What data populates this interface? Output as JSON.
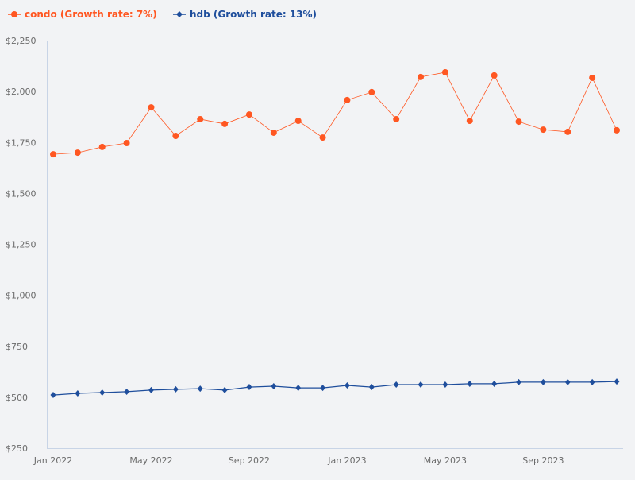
{
  "chart_data": {
    "type": "line",
    "title": "",
    "xlabel": "",
    "ylabel": "",
    "ylim": [
      250,
      2250
    ],
    "grid": false,
    "legend_position": "top-left",
    "y_ticks": [
      "$250",
      "$500",
      "$750",
      "$1,000",
      "$1,250",
      "$1,500",
      "$1,750",
      "$2,000",
      "$2,250"
    ],
    "y_tick_values": [
      250,
      500,
      750,
      1000,
      1250,
      1500,
      1750,
      2000,
      2250
    ],
    "x_ticks": [
      "Jan 2022",
      "May 2022",
      "Sep 2022",
      "Jan 2023",
      "May 2023",
      "Sep 2023"
    ],
    "x_tick_index": [
      0,
      4,
      8,
      12,
      16,
      20
    ],
    "x": [
      "2022-01",
      "2022-02",
      "2022-03",
      "2022-04",
      "2022-05",
      "2022-06",
      "2022-07",
      "2022-08",
      "2022-09",
      "2022-10",
      "2022-11",
      "2022-12",
      "2023-01",
      "2023-02",
      "2023-03",
      "2023-04",
      "2023-05",
      "2023-06",
      "2023-07",
      "2023-08",
      "2023-09",
      "2023-10",
      "2023-11",
      "2023-12"
    ],
    "series": [
      {
        "name": "condo (Growth rate: 7%)",
        "color": "#ff5722",
        "marker": "circle",
        "values": [
          1692,
          1700,
          1728,
          1747,
          1922,
          1782,
          1864,
          1841,
          1887,
          1798,
          1856,
          1774,
          1958,
          1997,
          1864,
          2071,
          2094,
          1856,
          2079,
          1852,
          1813,
          1802,
          2067,
          1810
        ]
      },
      {
        "name": "hdb (Growth rate: 13%)",
        "color": "#1f4e9c",
        "marker": "diamond",
        "values": [
          511,
          519,
          523,
          527,
          535,
          539,
          542,
          535,
          550,
          554,
          546,
          546,
          558,
          550,
          562,
          562,
          562,
          566,
          566,
          574,
          574,
          574,
          574,
          577
        ]
      }
    ]
  }
}
